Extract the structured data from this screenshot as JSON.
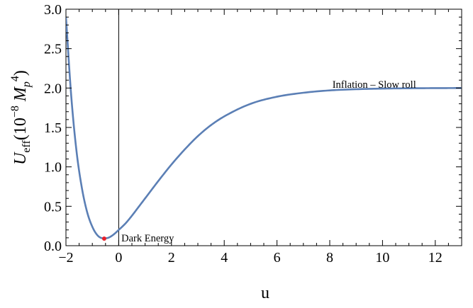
{
  "chart_data": {
    "type": "line",
    "xlabel": "u",
    "ylabel": {
      "symbol": "U",
      "subscript": "eff",
      "open": "(10",
      "exponent": "−8",
      "mass": "M",
      "mass_subscript": "p",
      "mass_exponent": "4",
      "close": ")"
    },
    "xlim": [
      -2,
      13
    ],
    "ylim": [
      0,
      3.0
    ],
    "x_ticks": [
      -2,
      0,
      2,
      4,
      6,
      8,
      10,
      12
    ],
    "x_tick_labels": [
      "−2",
      "0",
      "2",
      "4",
      "6",
      "8",
      "10",
      "12"
    ],
    "y_ticks": [
      0.0,
      0.5,
      1.0,
      1.5,
      2.0,
      2.5,
      3.0
    ],
    "y_tick_labels": [
      "0.0",
      "0.5",
      "1.0",
      "1.5",
      "2.0",
      "2.5",
      "3.0"
    ],
    "grid": false,
    "series": [
      {
        "color": "#5b7fb5",
        "x": [
          -2.0,
          -1.8,
          -1.6,
          -1.4,
          -1.2,
          -1.0,
          -0.8,
          -0.6,
          -0.4,
          -0.2,
          0.0,
          0.25,
          0.5,
          0.75,
          1.0,
          1.5,
          2.0,
          2.5,
          3.0,
          3.5,
          4.0,
          5.0,
          6.0,
          7.0,
          8.0,
          9.0,
          10.0,
          11.0,
          12.0,
          13.0
        ],
        "y": [
          2.9,
          1.9,
          1.2,
          0.74,
          0.43,
          0.24,
          0.13,
          0.095,
          0.1,
          0.14,
          0.2,
          0.28,
          0.38,
          0.49,
          0.6,
          0.82,
          1.03,
          1.22,
          1.39,
          1.53,
          1.64,
          1.8,
          1.89,
          1.94,
          1.97,
          1.985,
          1.993,
          1.997,
          1.999,
          2.0
        ]
      }
    ],
    "marker": {
      "x": -0.55,
      "y": 0.09,
      "color": "#e8202a"
    },
    "annotations": [
      {
        "text": "Dark Energy",
        "x": 0.1,
        "y": 0.1
      },
      {
        "text": "Inflation – Slow roll",
        "x": 8.1,
        "y": 2.05
      }
    ],
    "zero_line": {
      "x": 0
    }
  }
}
